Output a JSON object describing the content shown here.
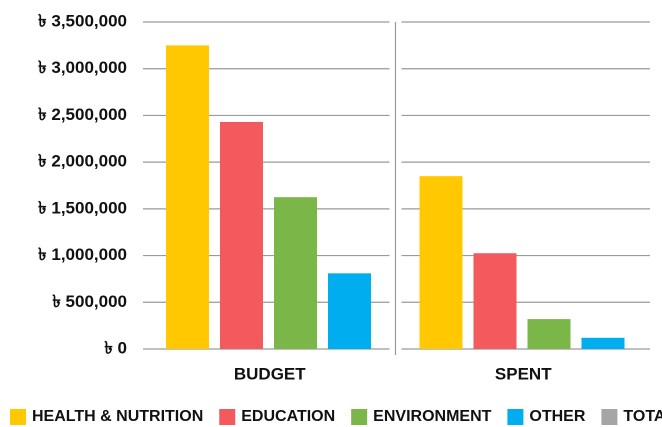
{
  "chart_data": {
    "type": "bar",
    "categories": [
      "BUDGET",
      "SPENT"
    ],
    "series": [
      {
        "name": "HEALTH & NUTRITION",
        "color": "#ffc800",
        "values": [
          3250000,
          1850000
        ]
      },
      {
        "name": "EDUCATION",
        "color": "#f25a5e",
        "values": [
          2430000,
          1025000
        ]
      },
      {
        "name": "ENVIRONMENT",
        "color": "#7ab648",
        "values": [
          1625000,
          320000
        ]
      },
      {
        "name": "OTHER",
        "color": "#00aeef",
        "values": [
          810000,
          120000
        ]
      },
      {
        "name": "TOTAL",
        "color": "#a5a5a5",
        "values": [
          null,
          null
        ]
      }
    ],
    "ylim": [
      0,
      3500000
    ],
    "yticks": [
      {
        "value": 0,
        "label": "৳ 0"
      },
      {
        "value": 500000,
        "label": "৳ 500,000"
      },
      {
        "value": 1000000,
        "label": "৳ 1,000,000"
      },
      {
        "value": 1500000,
        "label": "৳ 1,500,000"
      },
      {
        "value": 2000000,
        "label": "৳ 2,000,000"
      },
      {
        "value": 2500000,
        "label": "৳ 2,500,000"
      },
      {
        "value": 3000000,
        "label": "৳ 3,000,000"
      },
      {
        "value": 3500000,
        "label": "৳ 3,500,000"
      }
    ],
    "grid": true,
    "legend": "bottom"
  }
}
